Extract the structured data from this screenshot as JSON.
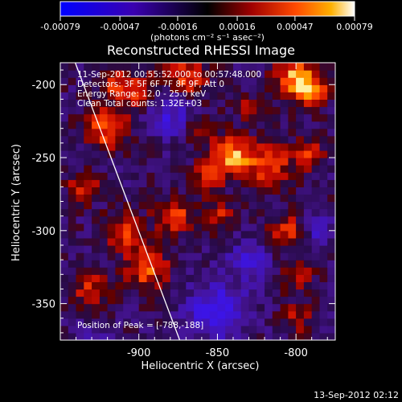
{
  "colorbar": {
    "tick_labels": [
      "-0.00079",
      "-0.00047",
      "-0.00016",
      "0.00016",
      "0.00047",
      "0.00079"
    ],
    "tick_values": [
      -0.00079,
      -0.00047,
      -0.00016,
      0.00016,
      0.00047,
      0.00079
    ],
    "units": "(photons cm⁻² s⁻¹ asec⁻²)",
    "range": [
      -0.00079,
      0.00079
    ]
  },
  "chart_data": {
    "type": "heatmap",
    "title": "Reconstructed RHESSI Image",
    "xlabel": "Heliocentric X (arcsec)",
    "ylabel": "Heliocentric Y (arcsec)",
    "xlim": [
      -950,
      -775
    ],
    "ylim": [
      -375,
      -185
    ],
    "x_ticks": [
      -900,
      -850,
      -800
    ],
    "y_ticks": [
      -200,
      -250,
      -300,
      -350
    ],
    "x_tick_labels": [
      "-900",
      "-850",
      "-800"
    ],
    "y_tick_labels": [
      "-200",
      "-250",
      "-300",
      "-350"
    ],
    "limb_line": [
      [
        -944,
        -175
      ],
      [
        -874,
        -375
      ]
    ],
    "grid": false,
    "annotations": [
      "11-Sep-2012 00:55:52.000 to 00:57:48.000",
      "Detectors: 3F 5F 6F 7F 8F 9F, Att 0",
      "Energy Range: 12.0 - 25.0 keV",
      "Clean     Total counts: 1.32E+03"
    ],
    "peak_label": "Position of Peak = [-788,-188]",
    "peak_position": [
      -788,
      -188
    ],
    "footer": "13-Sep-2012 02:12"
  }
}
